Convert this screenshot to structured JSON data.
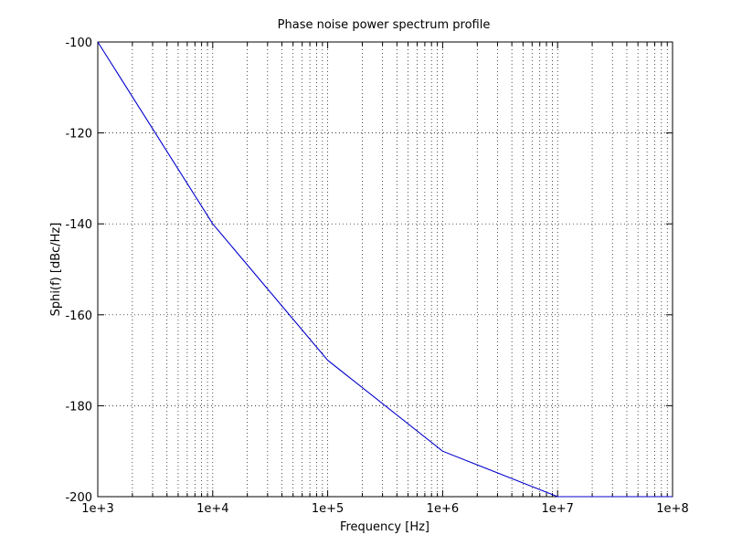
{
  "chart_data": {
    "type": "line",
    "title": "Phase noise power spectrum profile",
    "xlabel": "Frequency [Hz]",
    "ylabel": "Sphi(f) [dBc/Hz]",
    "x_scale": "log",
    "xlim": [
      1000,
      100000000
    ],
    "ylim": [
      -200,
      -100
    ],
    "grid": true,
    "x_ticks": [
      1000,
      10000,
      100000,
      1000000,
      10000000,
      100000000
    ],
    "x_tick_labels": [
      "1e+3",
      "1e+4",
      "1e+5",
      "1e+6",
      "1e+7",
      "1e+8"
    ],
    "y_ticks": [
      -200,
      -180,
      -160,
      -140,
      -120,
      -100
    ],
    "y_tick_labels": [
      "-200",
      "-180",
      "-160",
      "-140",
      "-120",
      "-100"
    ],
    "series": [
      {
        "color": "#0000cc",
        "x": [
          1000,
          10000,
          100000,
          1000000,
          10000000,
          100000000
        ],
        "y": [
          -100,
          -140,
          -170,
          -190,
          -200,
          -200
        ]
      }
    ]
  }
}
